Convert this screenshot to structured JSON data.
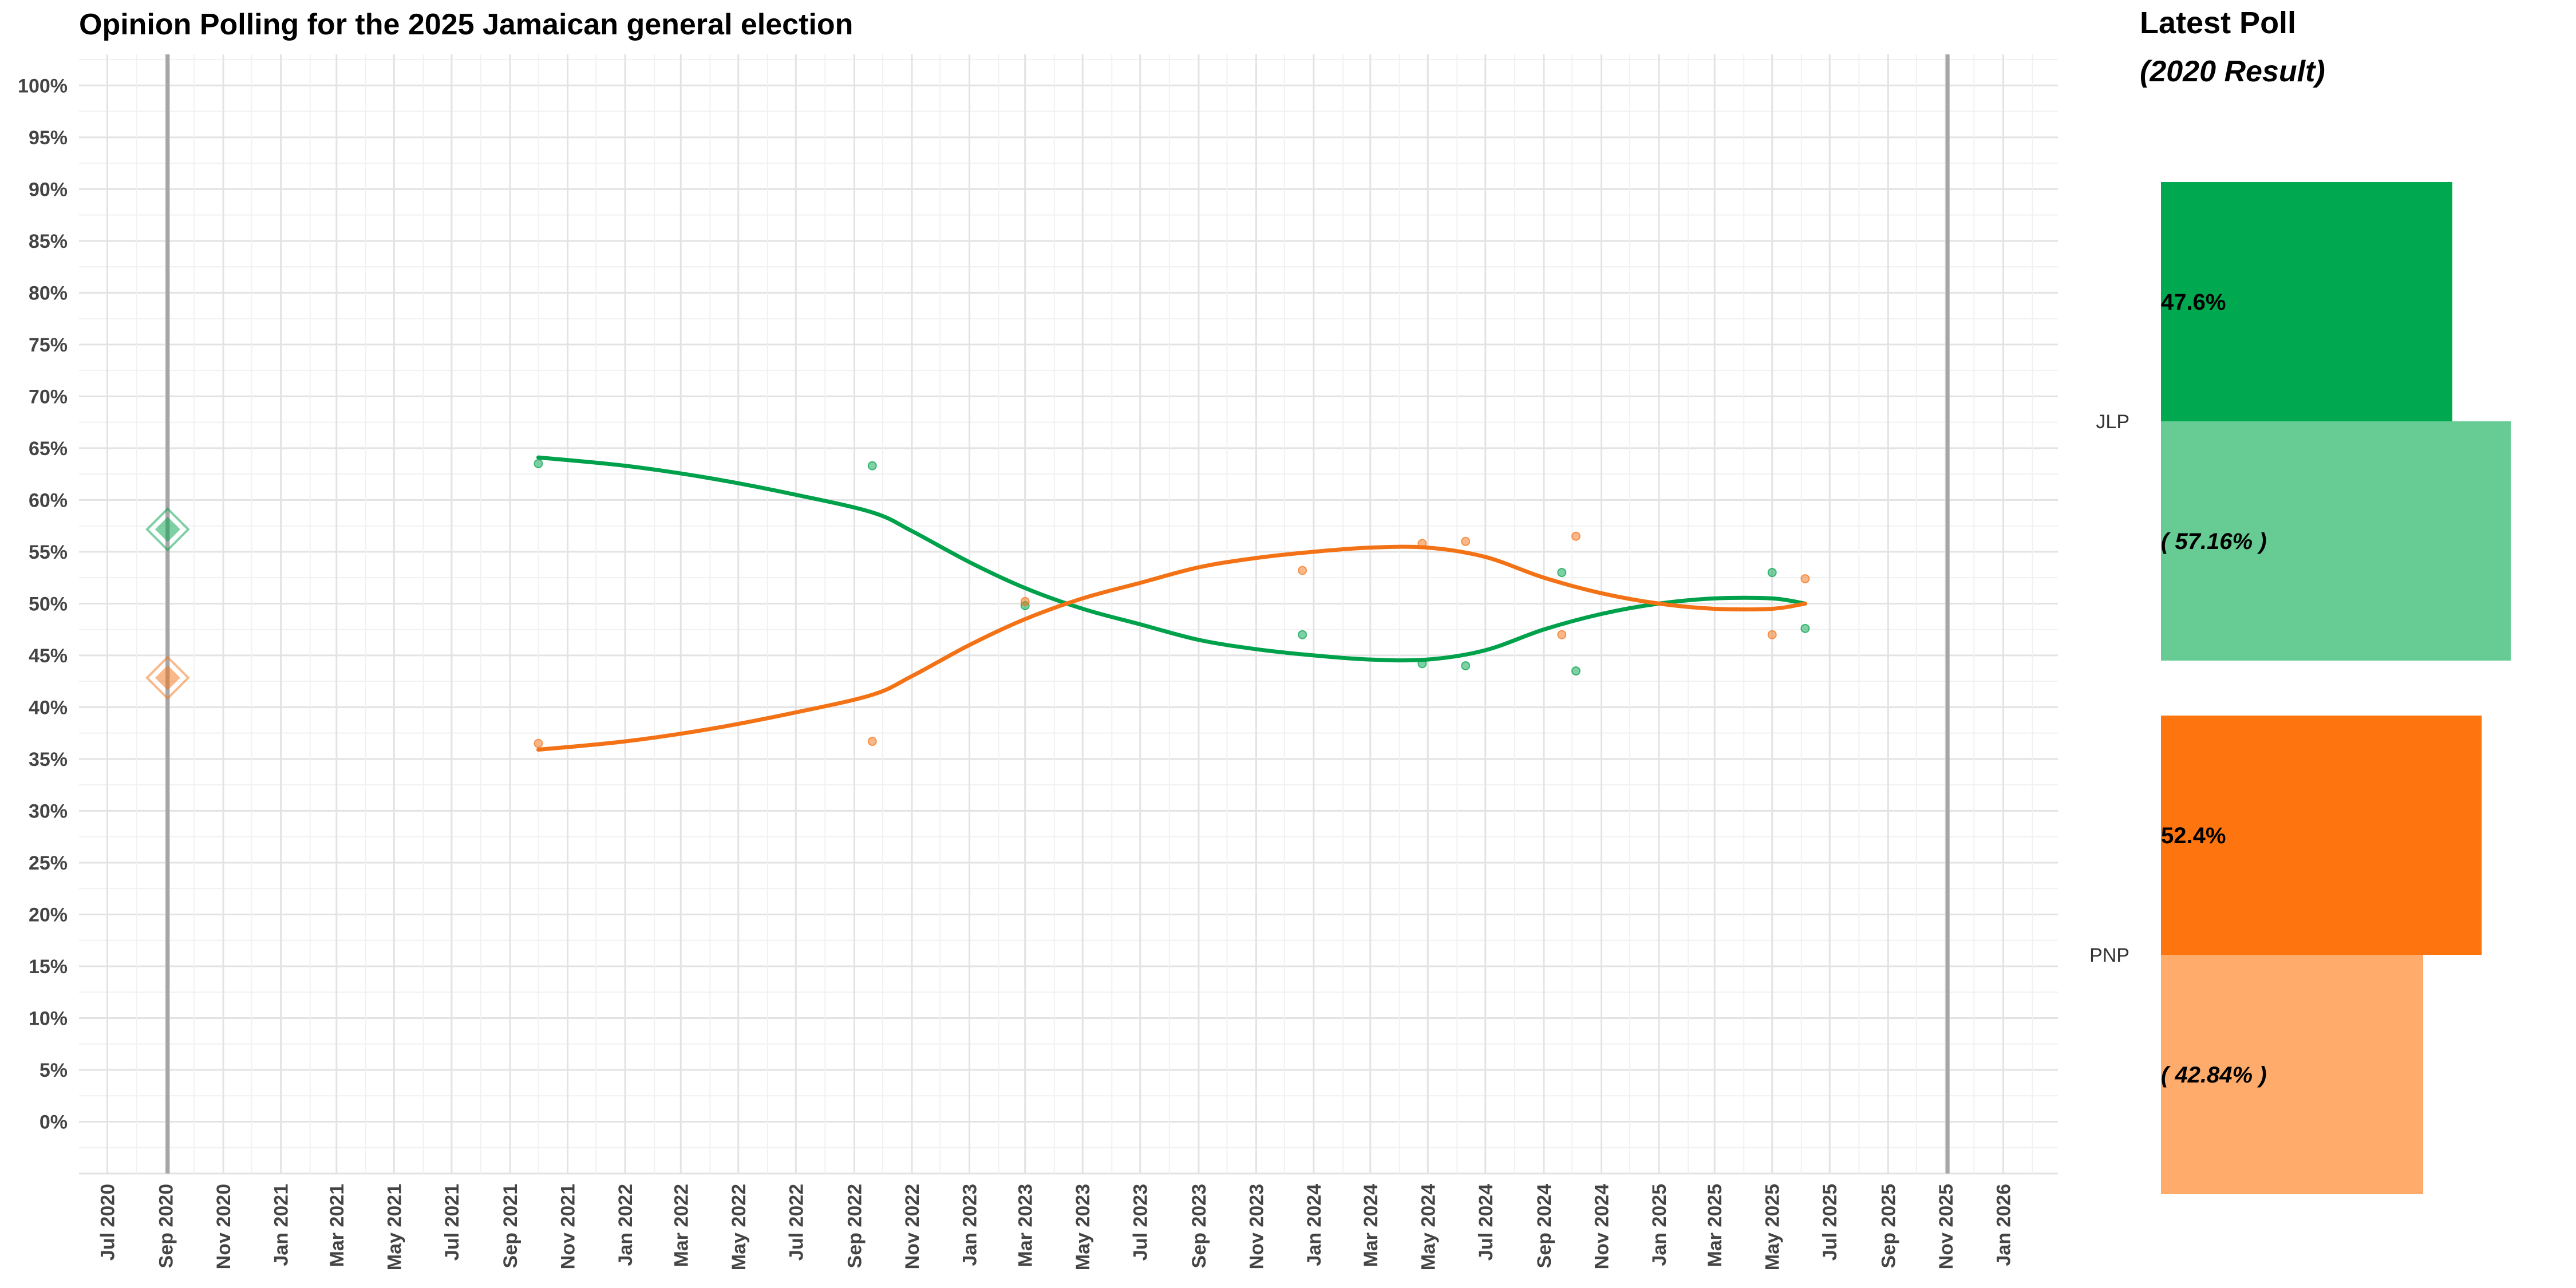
{
  "chart_data": [
    {
      "type": "line",
      "title": "Opinion Polling for the 2025 Jamaican general election",
      "x_axis": {
        "kind": "date",
        "range": [
          "2020-06-01",
          "2026-02-28"
        ],
        "tick_labels": [
          "Jul 2020",
          "Sep 2020",
          "Nov 2020",
          "Jan 2021",
          "Mar 2021",
          "May 2021",
          "Jul 2021",
          "Sep 2021",
          "Nov 2021",
          "Jan 2022",
          "Mar 2022",
          "May 2022",
          "Jul 2022",
          "Sep 2022",
          "Nov 2022",
          "Jan 2023",
          "Mar 2023",
          "May 2023",
          "Jul 2023",
          "Sep 2023",
          "Nov 2023",
          "Jan 2024",
          "Mar 2024",
          "May 2024",
          "Jul 2024",
          "Sep 2024",
          "Nov 2024",
          "Jan 2025",
          "Mar 2025",
          "May 2025",
          "Jul 2025",
          "Sep 2025",
          "Nov 2025",
          "Jan 2026"
        ],
        "tick_dates": [
          "2020-07-01",
          "2020-09-01",
          "2020-11-01",
          "2021-01-01",
          "2021-03-01",
          "2021-05-01",
          "2021-07-01",
          "2021-09-01",
          "2021-11-01",
          "2022-01-01",
          "2022-03-01",
          "2022-05-01",
          "2022-07-01",
          "2022-09-01",
          "2022-11-01",
          "2023-01-01",
          "2023-03-01",
          "2023-05-01",
          "2023-07-01",
          "2023-09-01",
          "2023-11-01",
          "2024-01-01",
          "2024-03-01",
          "2024-05-01",
          "2024-07-01",
          "2024-09-01",
          "2024-11-01",
          "2025-01-01",
          "2025-03-01",
          "2025-05-01",
          "2025-07-01",
          "2025-09-01",
          "2025-11-01",
          "2026-01-01"
        ]
      },
      "y_axis": {
        "range": [
          -5,
          103
        ],
        "ticks": [
          0,
          5,
          10,
          15,
          20,
          25,
          30,
          35,
          40,
          45,
          50,
          55,
          60,
          65,
          70,
          75,
          80,
          85,
          90,
          95,
          100
        ],
        "tick_labels": [
          "0%",
          "5%",
          "10%",
          "15%",
          "20%",
          "25%",
          "30%",
          "35%",
          "40%",
          "45%",
          "50%",
          "55%",
          "60%",
          "65%",
          "70%",
          "75%",
          "80%",
          "85%",
          "90%",
          "95%",
          "100%"
        ]
      },
      "grid": true,
      "vertical_markers": [
        "2020-09-03",
        "2025-11-03"
      ],
      "election_markers": [
        {
          "party": "JLP",
          "date": "2020-09-03",
          "value": 57.16
        },
        {
          "party": "PNP",
          "date": "2020-09-03",
          "value": 42.84
        }
      ],
      "series": [
        {
          "party": "JLP",
          "color": "#00A14B",
          "points": [
            {
              "x": "2021-10-01",
              "y": 63.5
            },
            {
              "x": "2022-09-20",
              "y": 63.3
            },
            {
              "x": "2023-03-01",
              "y": 49.8
            },
            {
              "x": "2023-12-20",
              "y": 47.0
            },
            {
              "x": "2024-04-25",
              "y": 44.2
            },
            {
              "x": "2024-06-10",
              "y": 44.0
            },
            {
              "x": "2024-09-20",
              "y": 53.0
            },
            {
              "x": "2024-10-05",
              "y": 43.5
            },
            {
              "x": "2025-05-01",
              "y": 53.0
            },
            {
              "x": "2025-06-05",
              "y": 47.6
            }
          ],
          "trend": [
            {
              "x": "2021-10-01",
              "y": 64.1
            },
            {
              "x": "2022-01-01",
              "y": 63.3
            },
            {
              "x": "2022-04-01",
              "y": 62.1
            },
            {
              "x": "2022-07-01",
              "y": 60.5
            },
            {
              "x": "2022-09-20",
              "y": 58.8
            },
            {
              "x": "2022-11-01",
              "y": 57.0
            },
            {
              "x": "2023-01-01",
              "y": 54.0
            },
            {
              "x": "2023-03-01",
              "y": 51.5
            },
            {
              "x": "2023-05-01",
              "y": 49.5
            },
            {
              "x": "2023-07-01",
              "y": 48.0
            },
            {
              "x": "2023-09-01",
              "y": 46.5
            },
            {
              "x": "2023-11-01",
              "y": 45.6
            },
            {
              "x": "2024-01-01",
              "y": 45.0
            },
            {
              "x": "2024-03-01",
              "y": 44.6
            },
            {
              "x": "2024-05-01",
              "y": 44.6
            },
            {
              "x": "2024-07-01",
              "y": 45.5
            },
            {
              "x": "2024-09-01",
              "y": 47.5
            },
            {
              "x": "2024-11-01",
              "y": 49.0
            },
            {
              "x": "2025-01-01",
              "y": 50.0
            },
            {
              "x": "2025-03-01",
              "y": 50.5
            },
            {
              "x": "2025-05-01",
              "y": 50.5
            },
            {
              "x": "2025-06-05",
              "y": 50.0
            }
          ]
        },
        {
          "party": "PNP",
          "color": "#F47216",
          "points": [
            {
              "x": "2021-10-01",
              "y": 36.5
            },
            {
              "x": "2022-09-20",
              "y": 36.7
            },
            {
              "x": "2023-03-01",
              "y": 50.2
            },
            {
              "x": "2023-12-20",
              "y": 53.2
            },
            {
              "x": "2024-04-25",
              "y": 55.8
            },
            {
              "x": "2024-06-10",
              "y": 56.0
            },
            {
              "x": "2024-09-20",
              "y": 47.0
            },
            {
              "x": "2024-10-05",
              "y": 56.5
            },
            {
              "x": "2025-05-01",
              "y": 47.0
            },
            {
              "x": "2025-06-05",
              "y": 52.4
            }
          ],
          "trend": [
            {
              "x": "2021-10-01",
              "y": 35.9
            },
            {
              "x": "2022-01-01",
              "y": 36.7
            },
            {
              "x": "2022-04-01",
              "y": 37.9
            },
            {
              "x": "2022-07-01",
              "y": 39.5
            },
            {
              "x": "2022-09-20",
              "y": 41.2
            },
            {
              "x": "2022-11-01",
              "y": 43.0
            },
            {
              "x": "2023-01-01",
              "y": 46.0
            },
            {
              "x": "2023-03-01",
              "y": 48.5
            },
            {
              "x": "2023-05-01",
              "y": 50.5
            },
            {
              "x": "2023-07-01",
              "y": 52.0
            },
            {
              "x": "2023-09-01",
              "y": 53.5
            },
            {
              "x": "2023-11-01",
              "y": 54.4
            },
            {
              "x": "2024-01-01",
              "y": 55.0
            },
            {
              "x": "2024-03-01",
              "y": 55.4
            },
            {
              "x": "2024-05-01",
              "y": 55.4
            },
            {
              "x": "2024-07-01",
              "y": 54.5
            },
            {
              "x": "2024-09-01",
              "y": 52.5
            },
            {
              "x": "2024-11-01",
              "y": 51.0
            },
            {
              "x": "2025-01-01",
              "y": 50.0
            },
            {
              "x": "2025-03-01",
              "y": 49.5
            },
            {
              "x": "2025-05-01",
              "y": 49.5
            },
            {
              "x": "2025-06-05",
              "y": 50.0
            }
          ]
        }
      ]
    },
    {
      "type": "bar",
      "title": "Latest Poll",
      "subtitle": "(2020 Result)",
      "max_value": 65,
      "bars": [
        {
          "party": "JLP",
          "latest": 47.6,
          "latest_label": "47.6%",
          "result": 57.16,
          "result_label": "( 57.16% )",
          "color_latest": "#00A94F",
          "color_result": "#66CC94"
        },
        {
          "party": "PNP",
          "latest": 52.4,
          "latest_label": "52.4%",
          "result": 42.84,
          "result_label": "( 42.84% )",
          "color_latest": "#FE740E",
          "color_result": "#FEAB6B"
        }
      ]
    }
  ]
}
